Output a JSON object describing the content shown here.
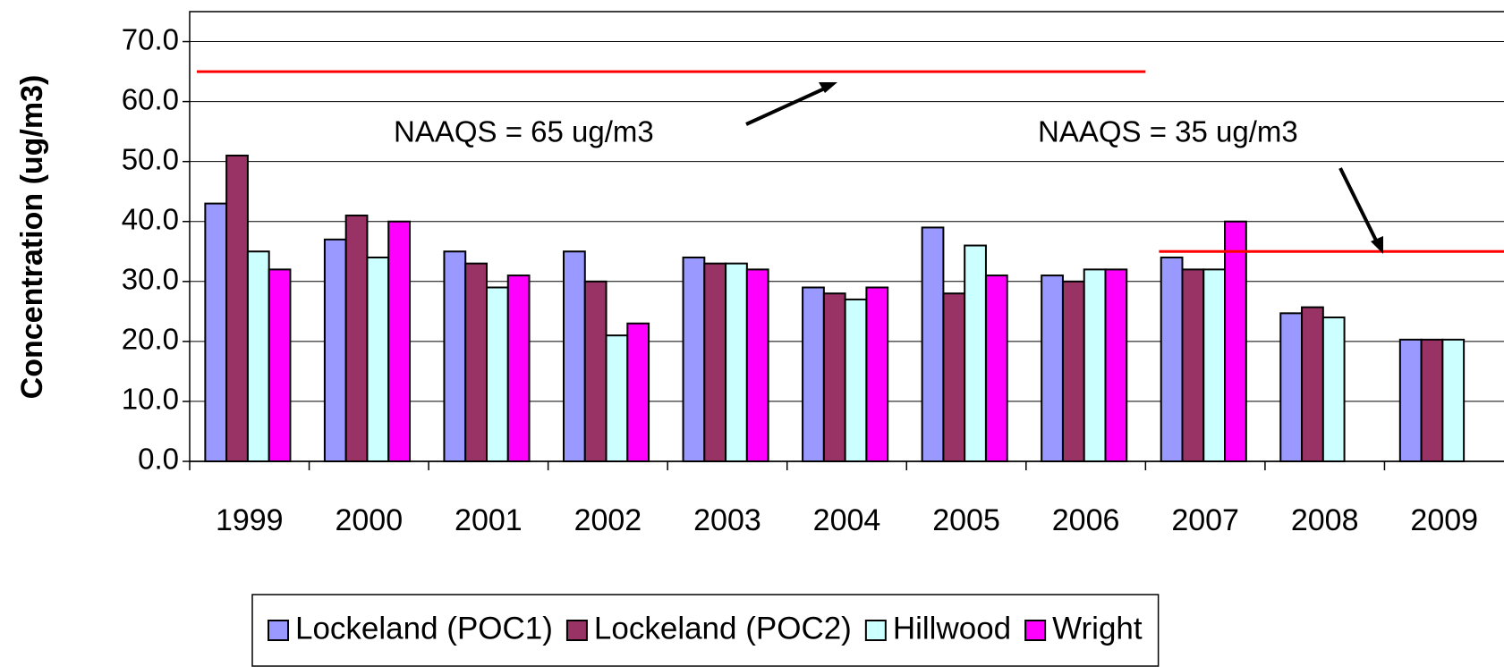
{
  "chart_data": {
    "type": "bar",
    "y_label": "Concentration (ug/m3)",
    "categories": [
      "1999",
      "2000",
      "2001",
      "2002",
      "2003",
      "2004",
      "2005",
      "2006",
      "2007",
      "2008",
      "2009"
    ],
    "series": [
      {
        "name": "Lockeland (POC1)",
        "color": "#9999ff",
        "values": [
          43,
          37,
          35,
          35,
          34,
          29,
          39,
          31,
          34,
          24.7,
          20.3
        ]
      },
      {
        "name": "Lockeland (POC2)",
        "color": "#993366",
        "values": [
          51,
          41,
          33,
          30,
          33,
          28,
          28,
          30,
          32,
          25.7,
          20.3
        ]
      },
      {
        "name": "Hillwood",
        "color": "#ccffff",
        "values": [
          35,
          34,
          29,
          21,
          33,
          27,
          36,
          32,
          32,
          24,
          20.3
        ]
      },
      {
        "name": "Wright",
        "color": "#ff00ff",
        "values": [
          32,
          40,
          31,
          23,
          32,
          29,
          31,
          32,
          40,
          null,
          null
        ]
      }
    ],
    "reference_lines": [
      {
        "value": 65,
        "label": "NAAQS = 65 ug/m3",
        "from": "1999",
        "to": "2006",
        "color": "#ff0000"
      },
      {
        "value": 35,
        "label": "NAAQS = 35 ug/m3",
        "from": "2007",
        "to": "2009",
        "color": "#ff0000"
      }
    ],
    "ylim": [
      0,
      75
    ],
    "yticks": [
      {
        "value": 0,
        "label": "0.0"
      },
      {
        "value": 10,
        "label": "10.0"
      },
      {
        "value": 20,
        "label": "20.0"
      },
      {
        "value": 30,
        "label": "30.0"
      },
      {
        "value": 40,
        "label": "40.0"
      },
      {
        "value": 50,
        "label": "50.0"
      },
      {
        "value": 60,
        "label": "60.0"
      },
      {
        "value": 70,
        "label": "70.0"
      }
    ],
    "grid": true,
    "legend": "bottom"
  }
}
